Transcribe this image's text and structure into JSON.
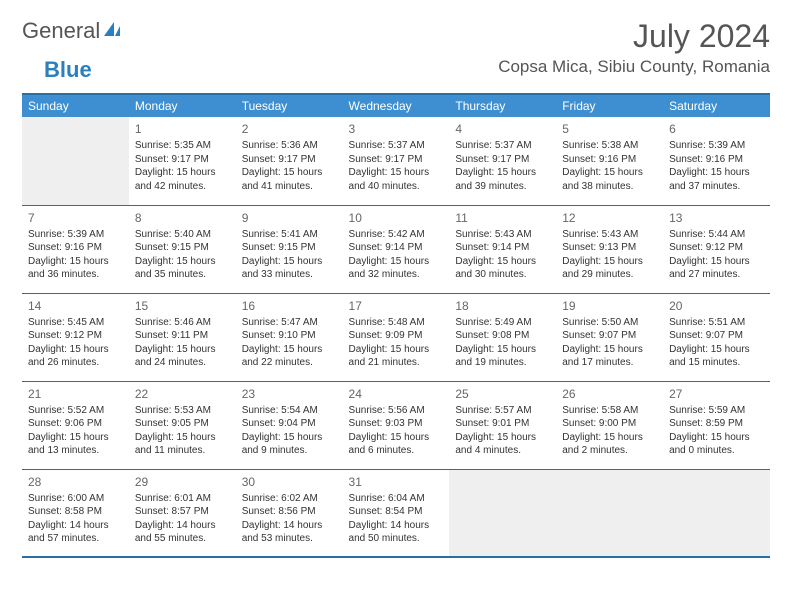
{
  "logo": {
    "word1": "General",
    "word2": "Blue"
  },
  "title": "July 2024",
  "location": "Copsa Mica, Sibiu County, Romania",
  "colors": {
    "header_bg": "#3d8fd1",
    "header_text": "#ffffff",
    "border": "#2a6fa3",
    "empty_bg": "#efefef",
    "logo_accent": "#2a7fbf",
    "text": "#333333"
  },
  "days_of_week": [
    "Sunday",
    "Monday",
    "Tuesday",
    "Wednesday",
    "Thursday",
    "Friday",
    "Saturday"
  ],
  "weeks": [
    [
      null,
      {
        "n": "1",
        "sr": "5:35 AM",
        "ss": "9:17 PM",
        "dl": "15 hours and 42 minutes."
      },
      {
        "n": "2",
        "sr": "5:36 AM",
        "ss": "9:17 PM",
        "dl": "15 hours and 41 minutes."
      },
      {
        "n": "3",
        "sr": "5:37 AM",
        "ss": "9:17 PM",
        "dl": "15 hours and 40 minutes."
      },
      {
        "n": "4",
        "sr": "5:37 AM",
        "ss": "9:17 PM",
        "dl": "15 hours and 39 minutes."
      },
      {
        "n": "5",
        "sr": "5:38 AM",
        "ss": "9:16 PM",
        "dl": "15 hours and 38 minutes."
      },
      {
        "n": "6",
        "sr": "5:39 AM",
        "ss": "9:16 PM",
        "dl": "15 hours and 37 minutes."
      }
    ],
    [
      {
        "n": "7",
        "sr": "5:39 AM",
        "ss": "9:16 PM",
        "dl": "15 hours and 36 minutes."
      },
      {
        "n": "8",
        "sr": "5:40 AM",
        "ss": "9:15 PM",
        "dl": "15 hours and 35 minutes."
      },
      {
        "n": "9",
        "sr": "5:41 AM",
        "ss": "9:15 PM",
        "dl": "15 hours and 33 minutes."
      },
      {
        "n": "10",
        "sr": "5:42 AM",
        "ss": "9:14 PM",
        "dl": "15 hours and 32 minutes."
      },
      {
        "n": "11",
        "sr": "5:43 AM",
        "ss": "9:14 PM",
        "dl": "15 hours and 30 minutes."
      },
      {
        "n": "12",
        "sr": "5:43 AM",
        "ss": "9:13 PM",
        "dl": "15 hours and 29 minutes."
      },
      {
        "n": "13",
        "sr": "5:44 AM",
        "ss": "9:12 PM",
        "dl": "15 hours and 27 minutes."
      }
    ],
    [
      {
        "n": "14",
        "sr": "5:45 AM",
        "ss": "9:12 PM",
        "dl": "15 hours and 26 minutes."
      },
      {
        "n": "15",
        "sr": "5:46 AM",
        "ss": "9:11 PM",
        "dl": "15 hours and 24 minutes."
      },
      {
        "n": "16",
        "sr": "5:47 AM",
        "ss": "9:10 PM",
        "dl": "15 hours and 22 minutes."
      },
      {
        "n": "17",
        "sr": "5:48 AM",
        "ss": "9:09 PM",
        "dl": "15 hours and 21 minutes."
      },
      {
        "n": "18",
        "sr": "5:49 AM",
        "ss": "9:08 PM",
        "dl": "15 hours and 19 minutes."
      },
      {
        "n": "19",
        "sr": "5:50 AM",
        "ss": "9:07 PM",
        "dl": "15 hours and 17 minutes."
      },
      {
        "n": "20",
        "sr": "5:51 AM",
        "ss": "9:07 PM",
        "dl": "15 hours and 15 minutes."
      }
    ],
    [
      {
        "n": "21",
        "sr": "5:52 AM",
        "ss": "9:06 PM",
        "dl": "15 hours and 13 minutes."
      },
      {
        "n": "22",
        "sr": "5:53 AM",
        "ss": "9:05 PM",
        "dl": "15 hours and 11 minutes."
      },
      {
        "n": "23",
        "sr": "5:54 AM",
        "ss": "9:04 PM",
        "dl": "15 hours and 9 minutes."
      },
      {
        "n": "24",
        "sr": "5:56 AM",
        "ss": "9:03 PM",
        "dl": "15 hours and 6 minutes."
      },
      {
        "n": "25",
        "sr": "5:57 AM",
        "ss": "9:01 PM",
        "dl": "15 hours and 4 minutes."
      },
      {
        "n": "26",
        "sr": "5:58 AM",
        "ss": "9:00 PM",
        "dl": "15 hours and 2 minutes."
      },
      {
        "n": "27",
        "sr": "5:59 AM",
        "ss": "8:59 PM",
        "dl": "15 hours and 0 minutes."
      }
    ],
    [
      {
        "n": "28",
        "sr": "6:00 AM",
        "ss": "8:58 PM",
        "dl": "14 hours and 57 minutes."
      },
      {
        "n": "29",
        "sr": "6:01 AM",
        "ss": "8:57 PM",
        "dl": "14 hours and 55 minutes."
      },
      {
        "n": "30",
        "sr": "6:02 AM",
        "ss": "8:56 PM",
        "dl": "14 hours and 53 minutes."
      },
      {
        "n": "31",
        "sr": "6:04 AM",
        "ss": "8:54 PM",
        "dl": "14 hours and 50 minutes."
      },
      null,
      null,
      null
    ]
  ],
  "labels": {
    "sunrise": "Sunrise:",
    "sunset": "Sunset:",
    "daylight": "Daylight:"
  }
}
